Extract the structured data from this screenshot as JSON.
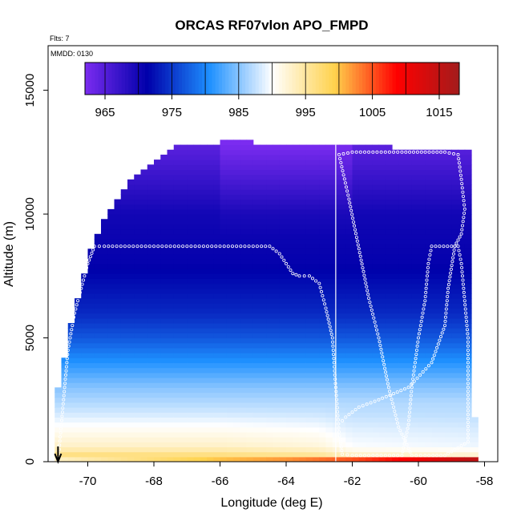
{
  "chart_data": {
    "type": "heatmap",
    "title": "ORCAS RF07vlon APO_FMPD",
    "xlabel": "Longitude (deg E)",
    "ylabel": "Altitude (m)",
    "corner_labels": {
      "flts": "Flts: 7",
      "mmdd": "MMDD: 0130"
    },
    "xlim": [
      -71.2,
      -57.6
    ],
    "ylim": [
      0,
      16800
    ],
    "x_ticks": [
      -70,
      -68,
      -66,
      -64,
      -62,
      -60,
      -58
    ],
    "y_ticks": [
      0,
      5000,
      10000,
      15000
    ],
    "colorbar": {
      "range": [
        962,
        1018
      ],
      "ticks": [
        965,
        975,
        985,
        995,
        1005,
        1015
      ],
      "colors": [
        "#7b2cf0",
        "#0000aa",
        "#1e90ff",
        "#ffffff",
        "#ffd24d",
        "#ff0000",
        "#a31c1c"
      ]
    },
    "profile_line_lon": -62.5,
    "arrow_lon": -70.9,
    "field_model": {
      "upper_levels": [
        [
          0,
          1005
        ],
        [
          250,
          997
        ],
        [
          600,
          993
        ],
        [
          1200,
          991
        ],
        [
          2000,
          988
        ],
        [
          3000,
          985
        ],
        [
          4000,
          981
        ],
        [
          5000,
          977
        ],
        [
          6000,
          974
        ],
        [
          8000,
          971
        ],
        [
          10000,
          970
        ],
        [
          12000,
          966
        ],
        [
          13000,
          964
        ]
      ],
      "lower_base": [
        [
          -71,
          993
        ],
        [
          -66,
          1000
        ],
        [
          -64,
          1002
        ],
        [
          -62,
          1005
        ],
        [
          -60,
          1010
        ],
        [
          -58.5,
          1015
        ]
      ],
      "lower_top": [
        [
          -71,
          994
        ],
        [
          -66,
          994
        ],
        [
          -63,
          992
        ],
        [
          -62,
          988
        ],
        [
          -58.3,
          987
        ]
      ]
    },
    "data_top": [
      [
        -71.0,
        2300
      ],
      [
        -70.8,
        3500
      ],
      [
        -70.6,
        4900
      ],
      [
        -70.4,
        6000
      ],
      [
        -70.2,
        7000
      ],
      [
        -69.9,
        8500
      ],
      [
        -69.6,
        9400
      ],
      [
        -69.4,
        10000
      ],
      [
        -69.0,
        10700
      ],
      [
        -68.6,
        11400
      ],
      [
        -68.0,
        12000
      ],
      [
        -67.6,
        12400
      ],
      [
        -67.2,
        12700
      ],
      [
        -66.0,
        12800
      ],
      [
        -65.5,
        13000
      ],
      [
        -64.9,
        12800
      ],
      [
        -62.5,
        12700
      ],
      [
        -61.0,
        12700
      ],
      [
        -60.6,
        12500
      ],
      [
        -58.4,
        12500
      ],
      [
        -58.4,
        1800
      ],
      [
        -58.3,
        1800
      ]
    ],
    "flight_track": [
      [
        -70.9,
        0
      ],
      [
        -70.8,
        1500
      ],
      [
        -70.7,
        3000
      ],
      [
        -70.6,
        4500
      ],
      [
        -70.4,
        6000
      ],
      [
        -70.2,
        7000
      ],
      [
        -70.0,
        8000
      ],
      [
        -69.8,
        8700
      ],
      [
        -69.5,
        8700
      ],
      [
        -68.5,
        8700
      ],
      [
        -67.0,
        8700
      ],
      [
        -65.5,
        8700
      ],
      [
        -64.5,
        8700
      ],
      [
        -64.2,
        8400
      ],
      [
        -64.0,
        8000
      ],
      [
        -63.8,
        7600
      ],
      [
        -63.6,
        7500
      ],
      [
        -63.3,
        7500
      ],
      [
        -63.0,
        7200
      ],
      [
        -62.8,
        6200
      ],
      [
        -62.6,
        5000
      ],
      [
        -62.5,
        3000
      ],
      [
        -62.4,
        1200
      ],
      [
        -62.3,
        300
      ],
      [
        -62.0,
        250
      ],
      [
        -61.0,
        250
      ],
      [
        -60.5,
        250
      ],
      [
        -60.3,
        1500
      ],
      [
        -60.2,
        3000
      ],
      [
        -60.0,
        5000
      ],
      [
        -59.8,
        6500
      ],
      [
        -59.7,
        8000
      ],
      [
        -59.6,
        8700
      ],
      [
        -59.0,
        8700
      ],
      [
        -58.8,
        8700
      ],
      [
        -58.7,
        8000
      ],
      [
        -58.6,
        6500
      ],
      [
        -58.5,
        5000
      ],
      [
        -58.5,
        3000
      ],
      [
        -58.5,
        800
      ],
      [
        -59.2,
        250
      ],
      [
        -59.8,
        250
      ],
      [
        -60.2,
        250
      ],
      [
        -60.6,
        1400
      ],
      [
        -60.9,
        3000
      ],
      [
        -61.2,
        5000
      ],
      [
        -61.5,
        6600
      ],
      [
        -61.8,
        8600
      ],
      [
        -62.1,
        10600
      ],
      [
        -62.4,
        12400
      ],
      [
        -62.0,
        12500
      ],
      [
        -60.5,
        12500
      ],
      [
        -59.2,
        12500
      ],
      [
        -58.8,
        12400
      ],
      [
        -58.7,
        11400
      ],
      [
        -58.6,
        10200
      ],
      [
        -58.7,
        9200
      ],
      [
        -58.9,
        8700
      ],
      [
        -59.1,
        7000
      ],
      [
        -59.2,
        5500
      ],
      [
        -59.6,
        4000
      ],
      [
        -60.3,
        3000
      ],
      [
        -61.2,
        2500
      ],
      [
        -61.8,
        2200
      ],
      [
        -62.2,
        1800
      ],
      [
        -62.4,
        1500
      ]
    ]
  }
}
